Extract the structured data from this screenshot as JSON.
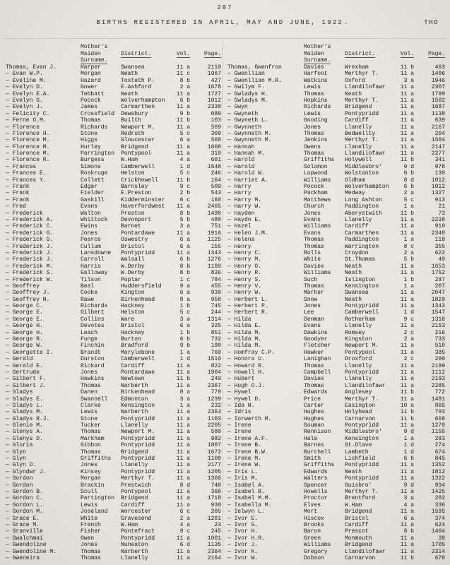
{
  "page": {
    "number": "287",
    "title": "BIRTHS REGISTERED IN APRIL, MAY AND JUNE, 1922.",
    "corner_tag": "THO"
  },
  "table": {
    "headers": {
      "mother_line1": "Mother's",
      "mother_line2": "Maiden",
      "mother_line3": "Surname.",
      "district": "District.",
      "vol": "Vol.",
      "page": "Page."
    },
    "left_rows": [
      [
        "Thomas, Evan J.",
        "Harper",
        "Swansea",
        "11 a",
        "2110"
      ],
      [
        "— Evan W.P.",
        "Morgan",
        "Neath",
        "11 c",
        "1967"
      ],
      [
        "— Eveline M.",
        "Hazard",
        "Toxteth P.",
        "8 b",
        "427"
      ],
      [
        "— Evelyn D.",
        "Gower",
        "E.Ashford",
        "2 a",
        "1678"
      ],
      [
        "— Evelyn E.A.",
        "Tebbatt",
        "Neath",
        "11 a",
        "1727"
      ],
      [
        "— Evelyn G.",
        "Pocock",
        "Wolverhampton",
        "6 b",
        "1012"
      ],
      [
        "— Evelyn J.",
        "James",
        "Carmarthen",
        "11 a",
        "2338"
      ],
      [
        "— Felicity C.",
        "Crossfield",
        "Dewsbury",
        "9 b",
        "089"
      ],
      [
        "— Ferne O.M.",
        "Thomas",
        "Builth",
        "11 b",
        "103"
      ],
      [
        "— Florence",
        "Richards",
        "Newport M.",
        "11 a",
        "569"
      ],
      [
        "— Florence H.",
        "Stone",
        "Redruth",
        "5 c",
        "309"
      ],
      [
        "— Florence M.",
        "Higgs",
        "Gloucester",
        "6 a",
        "568"
      ],
      [
        "— Florence M.",
        "Hurley",
        "Bridgend",
        "11 a",
        "1608"
      ],
      [
        "— Florence M.",
        "Parrington",
        "Pontypool",
        "11 a",
        "319"
      ],
      [
        "— Florence R.",
        "Burgess",
        "W.Ham",
        "4 a",
        "601"
      ],
      [
        "— Frances",
        "Simons",
        "Camberwell",
        "1 d",
        "1540"
      ],
      [
        "— Frances E.",
        "Roskruge",
        "Helston",
        "5 c",
        "246"
      ],
      [
        "— Frances Y.",
        "Collett",
        "Crickhowell",
        "11 b",
        "164"
      ],
      [
        "— Frank",
        "Edgar",
        "Barnsley",
        "9 c",
        "509"
      ],
      [
        "— Frank",
        "Fielder",
        "E.Preston",
        "2 b",
        "543"
      ],
      [
        "— Frank",
        "Gaskill",
        "Kidderminster",
        "6 c",
        "160"
      ],
      [
        "— Fred",
        "Evans",
        "Haverfordwest",
        "11 a",
        "2465"
      ],
      [
        "— Frederick",
        "Walton",
        "Preston",
        "8 b",
        "1490"
      ],
      [
        "— Frederick A.",
        "Whittock",
        "Devonport",
        "5 b",
        "480"
      ],
      [
        "— Frederick C.",
        "Ewins",
        "Barnet",
        "3 a",
        "751"
      ],
      [
        "— Frederick G.",
        "Jones",
        "Pontardawe",
        "11 a",
        "1916"
      ],
      [
        "— Frederick G.",
        "Pearce",
        "Oswestry",
        "6 a",
        "1125"
      ],
      [
        "— Frederick J.",
        "Cullum",
        "Bristol",
        "6 a",
        "155"
      ],
      [
        "— Frederick J.",
        "Lansdowne",
        "Pontypridd",
        "11 a",
        "1343"
      ],
      [
        "— Frederick J.",
        "Carroll",
        "Walsall",
        "6 b",
        "1276"
      ],
      [
        "— Frederick M.",
        "Harris",
        "W.Derby",
        "8 b",
        "1189"
      ],
      [
        "— Frederick S.",
        "Galloway",
        "W.Derby",
        "8 b",
        "836"
      ],
      [
        "— Frederick W.",
        "Tilson",
        "Poplar",
        "1 c",
        "784"
      ],
      [
        "— Geoffrey",
        "Beal",
        "Huddersfield",
        "9 a",
        "455"
      ],
      [
        "— Geoffrey J.",
        "Cooke",
        "Kington",
        "6 a",
        "939"
      ],
      [
        "— Geoffrey N.",
        "Rawe",
        "Birkenhead",
        "8 a",
        "958"
      ],
      [
        "— George C.",
        "Richards",
        "Hackney",
        "1 b",
        "745"
      ],
      [
        "— George E.",
        "Gilbert",
        "Helston",
        "5 c",
        "244"
      ],
      [
        "— George E.",
        "Collins",
        "Ware",
        "3 a",
        "1314"
      ],
      [
        "— George H.",
        "Devotes",
        "Bristol",
        "6 a",
        "325"
      ],
      [
        "— George H.",
        "Leach",
        "Hackney",
        "1 b",
        "851"
      ],
      [
        "— George R.",
        "Funge",
        "Burton",
        "6 b",
        "732"
      ],
      [
        "— George W.",
        "Finchin",
        "Bradford",
        "9 b",
        "190"
      ],
      [
        "— Georgette I.",
        "Brandt",
        "Marylebone",
        "1 a",
        "760"
      ],
      [
        "— Gerald",
        "Durston",
        "Camberwell",
        "1 d",
        "1510"
      ],
      [
        "— Gerald E.",
        "Rickard",
        "Cardiff",
        "11 a",
        "822"
      ],
      [
        "— Gertrude",
        "Jones",
        "Pontardawe",
        "11 a",
        "1904"
      ],
      [
        "— Gilbert F.",
        "Hawkins",
        "Newtown",
        "11 b",
        "249"
      ],
      [
        "— Gilbert J.",
        "Thomas",
        "Narberth",
        "11 a",
        "2367"
      ],
      [
        "— Gladys",
        "Danen",
        "Birkenhead",
        "8 a",
        "779"
      ],
      [
        "— Gladys E.",
        "Swannell",
        "Edmonton",
        "3 a",
        "1239"
      ],
      [
        "— Gladys L.",
        "Clarke",
        "Kensington",
        "1 a",
        "232"
      ],
      [
        "— Gladys M.",
        "Lewis",
        "Narberth",
        "11 a",
        "2363"
      ],
      [
        "— Gladys R.J.",
        "Stone",
        "Pontypridd",
        "11 a",
        "1103"
      ],
      [
        "— Glenie M.",
        "Tucker",
        "Llanelly",
        "11 a",
        "2205"
      ],
      [
        "— Glenys A.",
        "Thomas",
        "Newport M.",
        "11 a",
        "580"
      ],
      [
        "— Glenys D.",
        "Markham",
        "Pontypridd",
        "11 a",
        "982"
      ],
      [
        "— Gloria",
        "Gibbon",
        "Pontypridd",
        "11 a",
        "1007"
      ],
      [
        "— Glyn",
        "Thomas",
        "Bridgend",
        "11 a",
        "1672"
      ],
      [
        "— Glyn",
        "Griffiths",
        "Pontypridd",
        "11 a",
        "1100"
      ],
      [
        "— Glyn D.",
        "Jones",
        "Llanelly",
        "11 a",
        "2177"
      ],
      [
        "— Glyndwr J.",
        "Kinsey",
        "Pontypridd",
        "11 a",
        "1205"
      ],
      [
        "— Gordon",
        "Morgan",
        "Merthyr T.",
        "11 a",
        "1366"
      ],
      [
        "— Gordon",
        "Brackin",
        "Prestwich",
        "8 d",
        "748"
      ],
      [
        "— Gordon B.",
        "Scull",
        "Pontypool",
        "11 a",
        "366"
      ],
      [
        "— Gordon C.",
        "Partington",
        "Bridgend",
        "11 a",
        "1718"
      ],
      [
        "— Gordon L.",
        "Lewis",
        "Cardiff",
        "11 a",
        "930"
      ],
      [
        "— Gordon M.",
        "Joseland",
        "Worcester",
        "6 c",
        "205"
      ],
      [
        "— Grace E.",
        "White",
        "Gravesend",
        "2 a",
        "1201"
      ],
      [
        "— Grace M.",
        "French",
        "W.Ham",
        "4 a",
        "23"
      ],
      [
        "— Granville",
        "Fisher",
        "Pontefract",
        "9 c",
        "245"
      ],
      [
        "— Gwalchmai",
        "Owen",
        "Pontypridd",
        "11 a",
        "1001"
      ],
      [
        "— Gwendoline",
        "Jones",
        "Nuneaton",
        "6 d",
        "1135"
      ],
      [
        "— Gwendoline M.",
        "Thomas",
        "Narberth",
        "11 a",
        "2364"
      ],
      [
        "— Gweneira",
        "Thomas",
        "Llanelly",
        "11 a",
        "2164"
      ]
    ],
    "right_rows": [
      [
        "Thomas, Gwenfron",
        "Davies",
        "Wrexham",
        "11 b",
        "463"
      ],
      [
        "— Gwenllian",
        "Harfoot",
        "Merthyr T.",
        "11 a",
        "1406"
      ],
      [
        "— Gwenllian M.R.",
        "Watkins",
        "Oxford",
        "3 a",
        "1946"
      ],
      [
        "— Gwilym F.",
        "Lewis",
        "Llandilofawr",
        "11 a",
        "2307"
      ],
      [
        "— Gwladys H.",
        "Thomas",
        "Neath",
        "11 a",
        "1799"
      ],
      [
        "— Gwladys M.",
        "Hopkins",
        "Merthyr T.",
        "11 a",
        "1502"
      ],
      [
        "— Gwyn",
        "Richards",
        "Bridgend",
        "11 a",
        "1687"
      ],
      [
        "— Gwyneth",
        "Lewis",
        "Pontypridd",
        "11 a",
        "1138"
      ],
      [
        "— Gwyneth L.",
        "Gooding",
        "Cardiff",
        "11 a",
        "639"
      ],
      [
        "— Gwynneth",
        "Jones",
        "Llanelly",
        "11 a",
        "2167"
      ],
      [
        "— Gwynneth M.",
        "Thomas",
        "Bedwellty",
        "11 a",
        "204"
      ],
      [
        "— Gwynneth M.",
        "Jenkins",
        "Merthyr T.",
        "11 a",
        "1504"
      ],
      [
        "— Hannah",
        "Owens",
        "Llanelly",
        "11 a",
        "2147"
      ],
      [
        "— Hannah M.",
        "Thomas",
        "Llandilofawr",
        "11 a",
        "2277"
      ],
      [
        "— Harold",
        "Griffiths",
        "Holywell",
        "11 b",
        "341"
      ],
      [
        "— Harold",
        "Solomon",
        "Middlesbro'",
        "9 d",
        "978"
      ],
      [
        "— Harold W.",
        "Lopwood",
        "Wolstanton",
        "6 b",
        "130"
      ],
      [
        "— Harriet A.",
        "Williams",
        "Oldham",
        "8 d",
        "1012"
      ],
      [
        "— Harry",
        "Pocock",
        "Wolverhampton",
        "6 b",
        "1012"
      ],
      [
        "— Harry",
        "Packham",
        "Medway",
        "2 a",
        "1327"
      ],
      [
        "— Harry M.",
        "Matthews",
        "Long Ashton",
        "5 c",
        "913"
      ],
      [
        "— Harry W.",
        "Church",
        "Paddington",
        "1 a",
        "21"
      ],
      [
        "— Hayden",
        "Jones",
        "Aberystwith",
        "11 b",
        "73"
      ],
      [
        "— Haydn E.",
        "Evans",
        "Llanelly",
        "11 a",
        "2238"
      ],
      [
        "— Hazel",
        "Williams",
        "Cardiff",
        "11 a",
        "919"
      ],
      [
        "— Helen J.M.",
        "Evans",
        "Carmarthen",
        "11 a",
        "2348"
      ],
      [
        "— Helena",
        "Thomas",
        "Paddington",
        "1 a",
        "118"
      ],
      [
        "— Henry",
        "Thomas",
        "Warrington",
        "8 c",
        "355"
      ],
      [
        "— Henry C.",
        "Rolls",
        "Croydon",
        "2 a",
        "622"
      ],
      [
        "— Henry M.",
        "White",
        "St.Thomas",
        "5 b",
        "49"
      ],
      [
        "— Henry O.",
        "Davies",
        "Neath",
        "11 a",
        "1653"
      ],
      [
        "— Henry R.",
        "Williams",
        "Neath",
        "11 a",
        "1752"
      ],
      [
        "— Henry S.",
        "Such",
        "Islington",
        "1 b",
        "287"
      ],
      [
        "— Henry V.",
        "Thomas",
        "Kensington",
        "1 a",
        "207"
      ],
      [
        "— Henry W.",
        "Marker",
        "Swansea",
        "11 a",
        "2047"
      ],
      [
        "— Herbert L.",
        "Snow",
        "Neath",
        "11 a",
        "1829"
      ],
      [
        "— Herbert P.",
        "Jones",
        "Pontypridd",
        "11 a",
        "1343"
      ],
      [
        "— Herbert R.",
        "Lee",
        "Camberwell",
        "1 d",
        "1547"
      ],
      [
        "— Hilda",
        "Denman",
        "Rotherham",
        "9 c",
        "1318"
      ],
      [
        "— Hilda E.",
        "Evans",
        "Llanelly",
        "11 a",
        "2153"
      ],
      [
        "— Hilda M.",
        "Dawkins",
        "Romsey",
        "2 c",
        "216"
      ],
      [
        "— Hilda M.",
        "Goodyer",
        "Kingston",
        "2 a",
        "733"
      ],
      [
        "— Hilda M.",
        "Fletcher",
        "Newport M.",
        "11 a",
        "518"
      ],
      [
        "— Homfray C.P.",
        "Hawker",
        "Pontypool",
        "11 a",
        "385"
      ],
      [
        "— Honora U.",
        "Lanighan",
        "Droxford",
        "2 c",
        "290"
      ],
      [
        "— Howard R.",
        "Thomas",
        "Llanelly",
        "11 a",
        "2199"
      ],
      [
        "— Howell H.",
        "Campbell",
        "Pontypridd",
        "11 a",
        "1112"
      ],
      [
        "— Hubert",
        "Davies",
        "Llanelly",
        "11 a",
        "2193"
      ],
      [
        "— Hugh O.J.",
        "Thomas",
        "Llandilofawr",
        "11 a",
        "2285"
      ],
      [
        "— Hywel",
        "Edwards",
        "Anglesey",
        "11 b",
        "772"
      ],
      [
        "— Hywel D.",
        "Price",
        "Merthyr T.",
        "11 a",
        "1481"
      ],
      [
        "— Ida N.",
        "Carter",
        "Easington",
        "10 a",
        "865"
      ],
      [
        "— Idris",
        "Hughes",
        "Holyhead",
        "11 b",
        "793"
      ],
      [
        "— Iorwerth M.",
        "Hughes",
        "Carnarvon",
        "11 b",
        "668"
      ],
      [
        "— Irene",
        "Gouman",
        "Pontypridd",
        "11 a",
        "1270"
      ],
      [
        "— Irene",
        "Rennison",
        "Middlesbro'",
        "9 d",
        "1155"
      ],
      [
        "— Irene A.F.",
        "Hale",
        "Kensington",
        "1 a",
        "283"
      ],
      [
        "— Irene B.",
        "Barnes",
        "St.Olave",
        "1 d",
        "274"
      ],
      [
        "— Irene B.W.",
        "Burchell",
        "Lambeth",
        "1 d",
        "674"
      ],
      [
        "— Irene M.",
        "Smith",
        "Lichfield",
        "6 b",
        "845"
      ],
      [
        "— Irene W.",
        "Griffiths",
        "Pontypridd",
        "11 a",
        "1352"
      ],
      [
        "— Iris L.",
        "Edwards",
        "Neath",
        "11 a",
        "1812"
      ],
      [
        "— Iris M.",
        "Walters",
        "Pontypridd",
        "11 a",
        "1322"
      ],
      [
        "— Isabel A.",
        "Spencer",
        "Guisbro'",
        "9 d",
        "934"
      ],
      [
        "— Isabel B.",
        "Howells",
        "Merthyr T.",
        "11 a",
        "1425"
      ],
      [
        "— Isabel M.M.",
        "Proctor",
        "Brentford",
        "3 a",
        "282"
      ],
      [
        "— Isabella M.",
        "Elves",
        "W.Ham",
        "4 a",
        "336"
      ],
      [
        "— Ielwyn L.",
        "Mort",
        "Bridgend",
        "11 a",
        "1595"
      ],
      [
        "— Ivor E.",
        "Hiscox",
        "Bristol",
        "6 a",
        "374"
      ],
      [
        "— Ivor G.",
        "Brooks",
        "Cardiff",
        "11 a",
        "624"
      ],
      [
        "— Ivor H.",
        "Baron",
        "Prescot",
        "8 b",
        "1404"
      ],
      [
        "— Ivor H.R.",
        "Green",
        "Monmouth",
        "11 a",
        "38"
      ],
      [
        "— Ivor J.",
        "Williams",
        "Bridgend",
        "11 a",
        "1705"
      ],
      [
        "— Ivor K.",
        "Gregory",
        "Llandilofawr",
        "11 a",
        "2314"
      ],
      [
        "— Ivor W.",
        "Dobson",
        "Carnarvon",
        "11 b",
        "678"
      ]
    ]
  }
}
